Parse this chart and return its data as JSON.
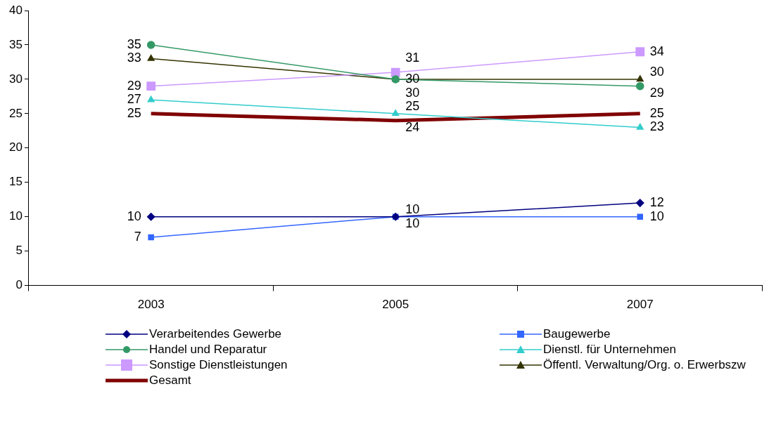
{
  "chart_data": {
    "type": "line",
    "categories": [
      "2003",
      "2005",
      "2007"
    ],
    "series": [
      {
        "name": "Verarbeitendes Gewerbe",
        "color": "#000080",
        "marker": "diamond",
        "values": [
          10,
          10,
          12
        ]
      },
      {
        "name": "Baugewerbe",
        "color": "#3366ff",
        "marker": "square",
        "values": [
          7,
          10,
          10
        ]
      },
      {
        "name": "Handel und Reparatur",
        "color": "#339966",
        "marker": "circle",
        "values": [
          35,
          30,
          29
        ]
      },
      {
        "name": "Dienstl. für Unternehmen",
        "color": "#33cccc",
        "marker": "triangle",
        "values": [
          27,
          25,
          23
        ]
      },
      {
        "name": "Sonstige Dienstleistungen",
        "color": "#cc99ff",
        "marker": "square",
        "values": [
          29,
          31,
          34
        ]
      },
      {
        "name": "Öffentl. Verwaltung/Org. o. Erwerbszw",
        "color": "#333300",
        "marker": "triangle",
        "values": [
          33,
          30,
          30
        ]
      },
      {
        "name": "Gesamt",
        "color": "#800000",
        "marker": "none",
        "values": [
          25,
          24,
          25
        ]
      }
    ],
    "ylim": [
      0,
      40
    ],
    "yticks": [
      0,
      5,
      10,
      15,
      20,
      25,
      30,
      35,
      40
    ],
    "grid": false,
    "legend": "bottom",
    "line_style": "solid",
    "data_labels": true
  }
}
